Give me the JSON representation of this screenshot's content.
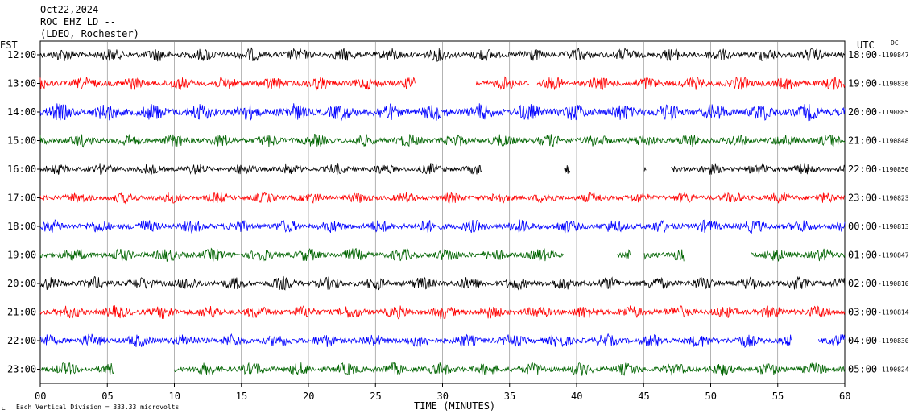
{
  "header": {
    "date": "Oct22,2024",
    "station": "ROC EHZ LD --",
    "network": "(LDEO, Rochester)"
  },
  "axis_labels": {
    "left_zone": "EST",
    "right_zone": "UTC",
    "dc": "DC",
    "x_title": "TIME (MINUTES)",
    "footer": "Each Vertical Division =  333.33 microvolts"
  },
  "colors": {
    "black": "#000000",
    "red": "#ff0000",
    "blue": "#0000ff",
    "green": "#006400",
    "grid": "#808080"
  },
  "chart_data": {
    "type": "line",
    "description_of_x": "minutes past the hour",
    "xlim": [
      0,
      60
    ],
    "x_ticks": [
      "00",
      "05",
      "10",
      "15",
      "20",
      "25",
      "30",
      "35",
      "40",
      "45",
      "50",
      "55",
      "60"
    ],
    "rows": [
      {
        "est": "12:00",
        "utc": "18:00",
        "dc": "-1190847",
        "color": "black",
        "amp": 6,
        "gaps": []
      },
      {
        "est": "13:00",
        "utc": "19:00",
        "dc": "-1190836",
        "color": "red",
        "amp": 6,
        "gaps": [
          [
            28,
            32.5
          ],
          [
            36.5,
            37
          ]
        ]
      },
      {
        "est": "14:00",
        "utc": "20:00",
        "dc": "-1190885",
        "color": "blue",
        "amp": 8,
        "gaps": []
      },
      {
        "est": "15:00",
        "utc": "21:00",
        "dc": "-1190848",
        "color": "green",
        "amp": 6,
        "gaps": []
      },
      {
        "est": "16:00",
        "utc": "22:00",
        "dc": "-1190850",
        "color": "black",
        "amp": 5,
        "gaps": [
          [
            33,
            39
          ],
          [
            39.5,
            45
          ],
          [
            45.2,
            47
          ]
        ]
      },
      {
        "est": "17:00",
        "utc": "23:00",
        "dc": "-1190823",
        "color": "red",
        "amp": 5,
        "gaps": []
      },
      {
        "est": "18:00",
        "utc": "00:00",
        "dc": "-1190813",
        "color": "blue",
        "amp": 6,
        "gaps": []
      },
      {
        "est": "19:00",
        "utc": "01:00",
        "dc": "-1190847",
        "color": "green",
        "amp": 6,
        "gaps": [
          [
            39,
            43
          ],
          [
            44,
            45
          ],
          [
            48,
            53
          ]
        ]
      },
      {
        "est": "20:00",
        "utc": "02:00",
        "dc": "-1190810",
        "color": "black",
        "amp": 6,
        "gaps": []
      },
      {
        "est": "21:00",
        "utc": "03:00",
        "dc": "-1190814",
        "color": "red",
        "amp": 6,
        "gaps": []
      },
      {
        "est": "22:00",
        "utc": "04:00",
        "dc": "-1190830",
        "color": "blue",
        "amp": 6,
        "gaps": [
          [
            56,
            58
          ]
        ]
      },
      {
        "est": "23:00",
        "utc": "05:00",
        "dc": "-1190824",
        "color": "green",
        "amp": 6,
        "gaps": [
          [
            5.5,
            10
          ]
        ]
      }
    ]
  }
}
